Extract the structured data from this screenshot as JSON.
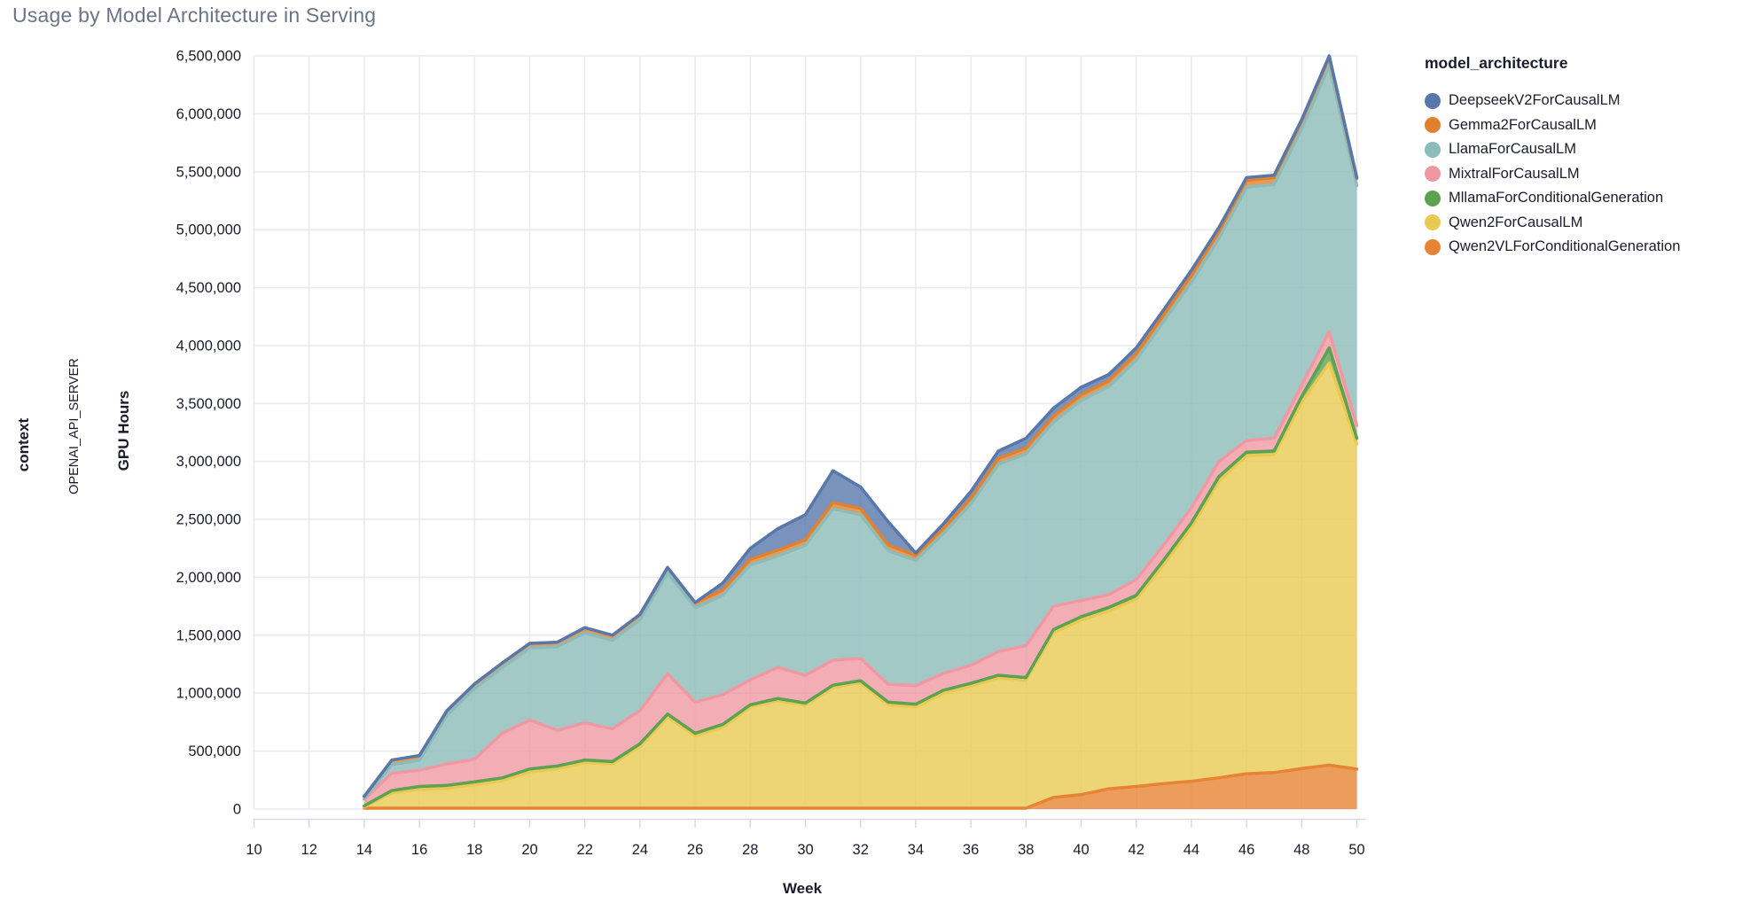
{
  "page": {
    "title": "Usage by Model Architecture in Serving"
  },
  "axes": {
    "context_label": "context",
    "facet_label": "OPENAI_API_SERVER",
    "y_title": "GPU Hours",
    "x_title": "Week"
  },
  "legend": {
    "title": "model_architecture"
  },
  "colors": {
    "grid": "#e9e9ef",
    "axis_domain": "#d9d9e2",
    "tick_text": "#1a1c2c",
    "title_text": "#6b7487",
    "plot_background": "#ffffff"
  },
  "chart_data": {
    "type": "area",
    "stacked": true,
    "title": "Usage by Model Architecture in Serving",
    "xlabel": "Week",
    "ylabel": "GPU Hours",
    "facet": "OPENAI_API_SERVER",
    "legend_title": "model_architecture",
    "legend_position": "right",
    "grid": true,
    "xlim": [
      10,
      50
    ],
    "ylim": [
      0,
      6500000
    ],
    "x_ticks": [
      10,
      12,
      14,
      16,
      18,
      20,
      22,
      24,
      26,
      28,
      30,
      32,
      34,
      36,
      38,
      40,
      42,
      44,
      46,
      48,
      50
    ],
    "y_ticks": [
      0,
      500000,
      1000000,
      1500000,
      2000000,
      2500000,
      3000000,
      3500000,
      4000000,
      4500000,
      5000000,
      5500000,
      6000000,
      6500000
    ],
    "x": [
      14,
      15,
      16,
      17,
      18,
      19,
      20,
      21,
      22,
      23,
      24,
      25,
      26,
      27,
      28,
      29,
      30,
      31,
      32,
      33,
      34,
      35,
      36,
      37,
      38,
      39,
      40,
      41,
      42,
      43,
      44,
      45,
      46,
      47,
      48,
      49,
      50
    ],
    "stack_bottom_to_top": [
      "Qwen2VLForConditionalGeneration",
      "Qwen2ForCausalLM",
      "MllamaForConditionalGeneration",
      "MixtralForCausalLM",
      "LlamaForCausalLM",
      "Gemma2ForCausalLM",
      "DeepseekV2ForCausalLM"
    ],
    "series": [
      {
        "name": "DeepseekV2ForCausalLM",
        "color": "#5878ab",
        "values": [
          0,
          0,
          0,
          0,
          0,
          0,
          0,
          0,
          0,
          0,
          0,
          0,
          0,
          60000,
          95000,
          185000,
          215000,
          275000,
          185000,
          200000,
          20000,
          40000,
          60000,
          65000,
          85000,
          70000,
          65000,
          55000,
          50000,
          45000,
          45000,
          35000,
          25000,
          20000,
          15000,
          15000,
          10000
        ]
      },
      {
        "name": "Gemma2ForCausalLM",
        "color": "#e0812f",
        "values": [
          20000,
          40000,
          40000,
          40000,
          40000,
          40000,
          40000,
          40000,
          45000,
          45000,
          45000,
          45000,
          45000,
          45000,
          50000,
          50000,
          50000,
          55000,
          55000,
          50000,
          45000,
          45000,
          45000,
          50000,
          50000,
          50000,
          50000,
          50000,
          55000,
          55000,
          60000,
          60000,
          60000,
          60000,
          65000,
          70000,
          60000
        ]
      },
      {
        "name": "LlamaForCausalLM",
        "color": "#8cbcb9",
        "values": [
          5000,
          73000,
          87000,
          420000,
          610000,
          566000,
          621000,
          721000,
          776000,
          763000,
          785000,
          873000,
          814000,
          858000,
          990000,
          962000,
          1121000,
          1305000,
          1240000,
          1153000,
          1079000,
          1205000,
          1395000,
          1615000,
          1655000,
          1590000,
          1725000,
          1795000,
          1895000,
          1930000,
          1945000,
          1925000,
          2185000,
          2190000,
          2210000,
          2295000,
          2070000
        ]
      },
      {
        "name": "MixtralForCausalLM",
        "color": "#f098a2",
        "values": [
          57000,
          150000,
          140000,
          185000,
          195000,
          385000,
          423000,
          307000,
          321000,
          282000,
          286000,
          347000,
          269000,
          256000,
          215000,
          269000,
          239000,
          216000,
          192000,
          154000,
          161000,
          145000,
          155000,
          205000,
          275000,
          200000,
          140000,
          110000,
          135000,
          130000,
          130000,
          130000,
          100000,
          110000,
          100000,
          140000,
          110000
        ]
      },
      {
        "name": "MllamaForConditionalGeneration",
        "color": "#5ba253",
        "values": [
          8000,
          20000,
          25000,
          25000,
          25000,
          25000,
          25000,
          25000,
          23000,
          20000,
          24000,
          25000,
          24000,
          26000,
          20000,
          19000,
          20000,
          19000,
          18000,
          23000,
          25000,
          25000,
          25000,
          25000,
          25000,
          30000,
          30000,
          30000,
          35000,
          40000,
          40000,
          40000,
          30000,
          30000,
          50000,
          130000,
          50000
        ]
      },
      {
        "name": "Qwen2ForCausalLM",
        "color": "#e8ca53",
        "values": [
          12000,
          132000,
          162000,
          172000,
          202000,
          236000,
          313000,
          339000,
          392000,
          382000,
          532000,
          787000,
          622000,
          697000,
          872000,
          927000,
          887000,
          1042000,
          1082000,
          892000,
          872000,
          992000,
          1052000,
          1122000,
          1102000,
          1420000,
          1505000,
          1535000,
          1615000,
          1890000,
          2190000,
          2560000,
          2745000,
          2745000,
          3160000,
          3470000,
          2805000
        ]
      },
      {
        "name": "Qwen2VLForConditionalGeneration",
        "color": "#e78433",
        "values": [
          8000,
          8000,
          8000,
          8000,
          8000,
          8000,
          8000,
          8000,
          8000,
          8000,
          8000,
          8000,
          8000,
          8000,
          8000,
          8000,
          8000,
          8000,
          8000,
          8000,
          8000,
          8000,
          8000,
          8000,
          8000,
          100000,
          125000,
          175000,
          195000,
          220000,
          240000,
          270000,
          305000,
          315000,
          350000,
          380000,
          345000
        ]
      }
    ]
  }
}
